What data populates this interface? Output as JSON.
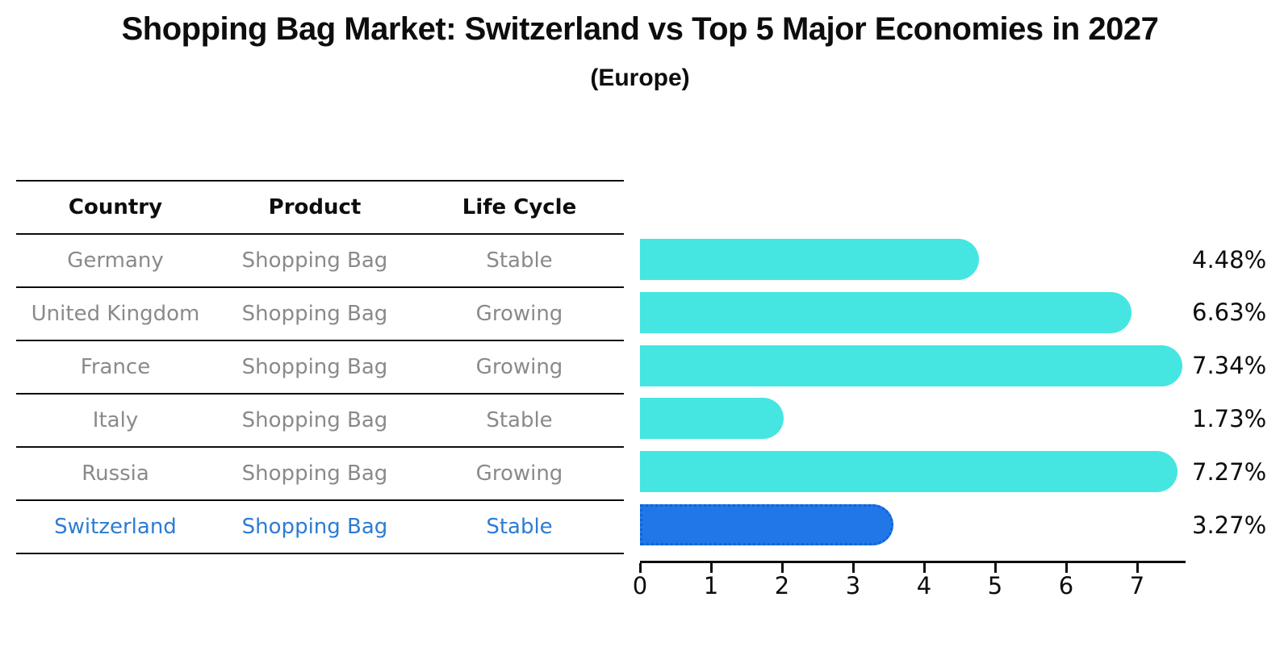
{
  "title": "Shopping Bag Market: Switzerland vs Top 5 Major Economies in 2027",
  "subtitle": "(Europe)",
  "table": {
    "columns": [
      "Country",
      "Product",
      "Life Cycle"
    ],
    "rows": [
      {
        "country": "Germany",
        "product": "Shopping Bag",
        "life_cycle": "Stable",
        "highlight": false
      },
      {
        "country": "United Kingdom",
        "product": "Shopping Bag",
        "life_cycle": "Growing",
        "highlight": false
      },
      {
        "country": "France",
        "product": "Shopping Bag",
        "life_cycle": "Growing",
        "highlight": false
      },
      {
        "country": "Italy",
        "product": "Shopping Bag",
        "life_cycle": "Stable",
        "highlight": false
      },
      {
        "country": "Russia",
        "product": "Shopping Bag",
        "life_cycle": "Growing",
        "highlight": false
      },
      {
        "country": "Switzerland",
        "product": "Shopping Bag",
        "life_cycle": "Stable",
        "highlight": true
      }
    ]
  },
  "chart_data": {
    "type": "bar",
    "orientation": "horizontal",
    "title": "Shopping Bag Market: Switzerland vs Top 5 Major Economies in 2027 (Europe)",
    "categories": [
      "Germany",
      "United Kingdom",
      "France",
      "Italy",
      "Russia",
      "Switzerland"
    ],
    "values": [
      4.48,
      6.63,
      7.34,
      1.73,
      7.27,
      3.27
    ],
    "value_labels": [
      "4.48%",
      "6.63%",
      "7.34%",
      "1.73%",
      "7.27%",
      "3.27%"
    ],
    "highlight_index": 5,
    "xlabel": "",
    "ylabel": "",
    "x_ticks": [
      "0",
      "1",
      "2",
      "3",
      "4",
      "5",
      "6",
      "7"
    ],
    "xlim": [
      0,
      7.7
    ],
    "grid": false,
    "legend": false,
    "colors": {
      "bar": "#45e6e1",
      "highlight_bar": "#2277e8",
      "highlight_border": "#0d63da",
      "highlight_text": "#2d7cd2",
      "row_text": "#8a8a8a",
      "axis": "#0d0d0d"
    }
  }
}
